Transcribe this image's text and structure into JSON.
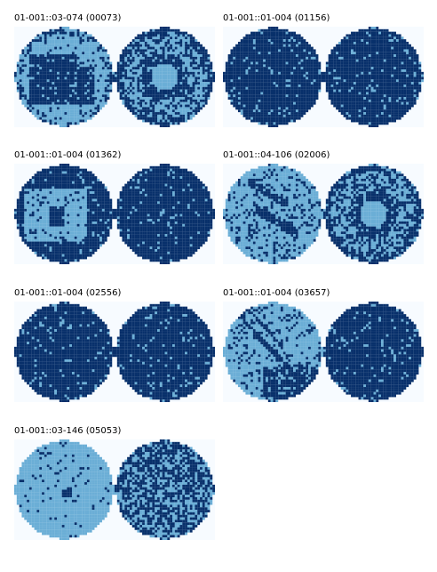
{
  "colors": {
    "background": "#f7fbff",
    "pass": "#6baed6",
    "fail": "#08306b"
  },
  "panels": [
    {
      "label": "01-001::03-074 (00073)",
      "left_pattern": "blob",
      "right_pattern": "ring"
    },
    {
      "label": "01-001::01-004 (01156)",
      "left_pattern": "dense",
      "right_pattern": "dense"
    },
    {
      "label": "01-001::01-004 (01362)",
      "left_pattern": "block",
      "right_pattern": "dense"
    },
    {
      "label": "01-001::04-106 (02006)",
      "left_pattern": "streaks",
      "right_pattern": "ring"
    },
    {
      "label": "01-001::01-004 (02556)",
      "left_pattern": "dense",
      "right_pattern": "dense"
    },
    {
      "label": "01-001::01-004 (03657)",
      "left_pattern": "scratch",
      "right_pattern": "dense"
    },
    {
      "label": "01-001::03-146 (05053)",
      "left_pattern": "sparse",
      "right_pattern": "random"
    }
  ]
}
